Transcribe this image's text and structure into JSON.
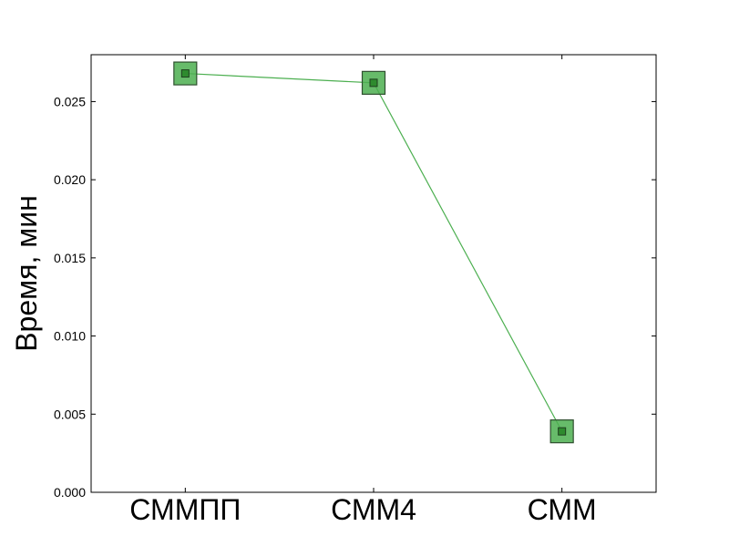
{
  "chart_data": {
    "type": "line",
    "categories": [
      "СММПП",
      "СММ4",
      "СММ"
    ],
    "series": [
      {
        "values": [
          0.0268,
          0.0262,
          0.0039
        ],
        "color": "#4CAF50"
      }
    ],
    "title": "",
    "xlabel": "",
    "ylabel": "Время, мин",
    "ylim": [
      0.0,
      0.028
    ],
    "yticks": [
      0.0,
      0.005,
      0.01,
      0.015,
      0.02,
      0.025
    ],
    "ytick_labels": [
      "0.000",
      "0.005",
      "0.010",
      "0.015",
      "0.020",
      "0.025"
    ],
    "grid": false,
    "legend": "none",
    "marker": "square"
  }
}
